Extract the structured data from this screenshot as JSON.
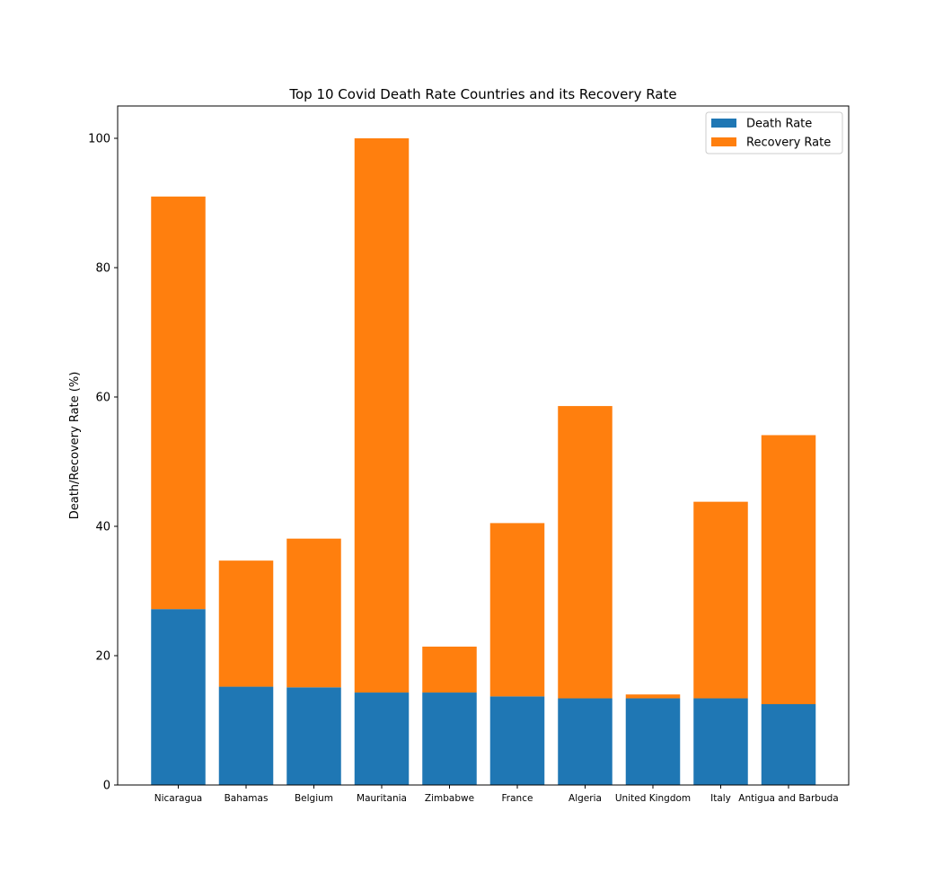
{
  "chart_data": {
    "type": "bar",
    "stacked": true,
    "title": "Top 10 Covid Death Rate Countries and its Recovery Rate",
    "xlabel": "",
    "ylabel": "Death/Recovery Rate (%)",
    "ylim": [
      0,
      105
    ],
    "yticks": [
      0,
      20,
      40,
      60,
      80,
      100
    ],
    "categories": [
      "Nicaragua",
      "Bahamas",
      "Belgium",
      "Mauritania",
      "Zimbabwe",
      "France",
      "Algeria",
      "United Kingdom",
      "Italy",
      "Antigua and Barbuda"
    ],
    "series": [
      {
        "name": "Death Rate",
        "color": "#1f77b4",
        "values": [
          27.2,
          15.2,
          15.1,
          14.3,
          14.3,
          13.7,
          13.4,
          13.4,
          13.4,
          12.5
        ]
      },
      {
        "name": "Recovery Rate",
        "color": "#ff7f0e",
        "values": [
          63.8,
          19.5,
          23.0,
          85.7,
          7.1,
          26.8,
          45.2,
          0.6,
          30.4,
          41.6
        ]
      }
    ],
    "legend": "top-right",
    "grid": false
  }
}
